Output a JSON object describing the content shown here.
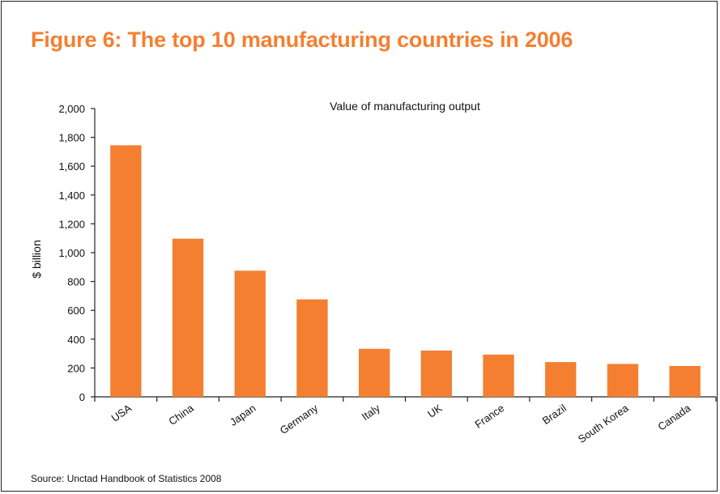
{
  "figure": {
    "title": "Figure 6: The top 10 manufacturing countries in 2006",
    "source": "Source: Unctad Handbook of Statistics 2008"
  },
  "chart_data": {
    "type": "bar",
    "title": "Value of manufacturing output",
    "xlabel": "",
    "ylabel": "$ billion",
    "categories": [
      "USA",
      "China",
      "Japan",
      "Germany",
      "Italy",
      "UK",
      "France",
      "Brazil",
      "South Korea",
      "Canada"
    ],
    "values": [
      1745,
      1097,
      875,
      676,
      333,
      321,
      293,
      241,
      228,
      214
    ],
    "ylim": [
      0,
      2000
    ],
    "yticks": [
      0,
      200,
      400,
      600,
      800,
      1000,
      1200,
      1400,
      1600,
      1800,
      2000
    ],
    "ytick_labels": [
      "0",
      "200",
      "400",
      "600",
      "800",
      "1,000",
      "1,200",
      "1,400",
      "1,600",
      "1,800",
      "2,000"
    ],
    "grid": false,
    "bar_color": "#f47f30",
    "title_color": "#f47f30"
  }
}
